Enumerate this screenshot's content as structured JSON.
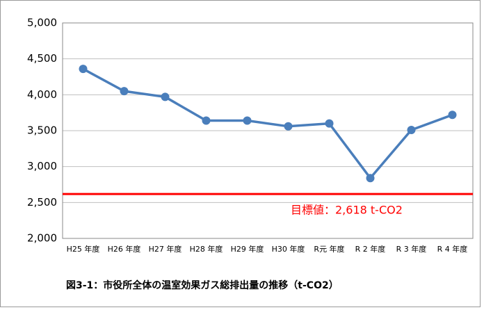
{
  "chart_data": {
    "type": "line",
    "title": "図3-1：市役所全体の温室効果ガス総排出量の推移（t-CO2）",
    "categories": [
      "H25 年度",
      "H26 年度",
      "H27 年度",
      "H28 年度",
      "H29 年度",
      "H30 年度",
      "R元 年度",
      "R 2 年度",
      "R 3 年度",
      "R 4 年度"
    ],
    "series": [
      {
        "color": "#4a7ebb",
        "values": [
          4360,
          4050,
          3970,
          3640,
          3640,
          3560,
          3600,
          2840,
          3510,
          3720
        ]
      }
    ],
    "ylim": [
      2000,
      5000
    ],
    "yticks": [
      {
        "value": 2000,
        "label": "2,000"
      },
      {
        "value": 2500,
        "label": "2,500"
      },
      {
        "value": 3000,
        "label": "3,000"
      },
      {
        "value": 3500,
        "label": "3,500"
      },
      {
        "value": 4000,
        "label": "4,000"
      },
      {
        "value": 4500,
        "label": "4,500"
      },
      {
        "value": 5000,
        "label": "5,000"
      }
    ],
    "grid": true,
    "target": {
      "value": 2618,
      "label": "目標値：2,618 t-CO2",
      "color": "#ff0000"
    }
  }
}
